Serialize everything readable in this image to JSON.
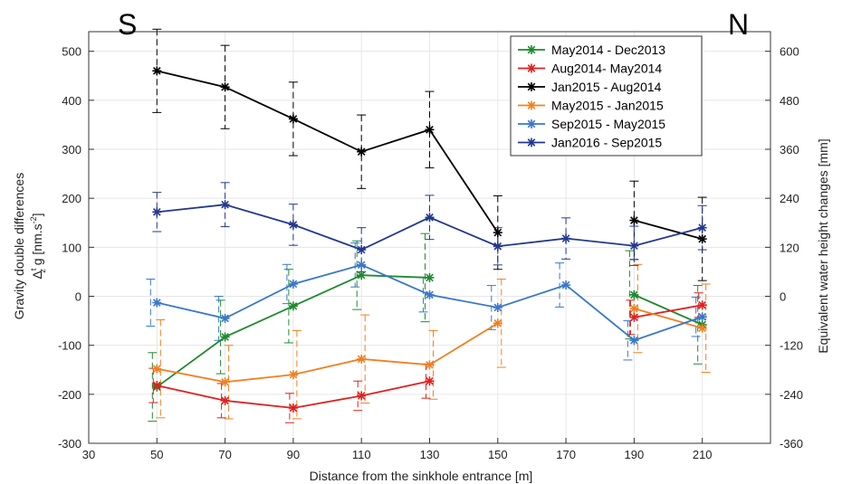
{
  "chart_data": {
    "type": "line",
    "corner_left": "S",
    "corner_right": "N",
    "xlabel": "Distance from the sinkhole entrance  [m]",
    "ylabel_line1": "Gravity double differences",
    "ylabel_line2_prefix": "Δ",
    "ylabel_line2_sub": "z",
    "ylabel_line2_sup": "t",
    "ylabel_line2_rest": " g  [nm.s",
    "ylabel_line2_unit_sup": "-2",
    "ylabel_line2_end": "]",
    "y2label": "Equivalent water height  changes [mm]",
    "xlim": [
      30,
      230
    ],
    "ylim": [
      -300,
      540
    ],
    "y2lim": [
      -360,
      648
    ],
    "xticks": [
      "30",
      "50",
      "70",
      "90",
      "110",
      "130",
      "150",
      "170",
      "190",
      "210"
    ],
    "xtick_values": [
      30,
      50,
      70,
      90,
      110,
      130,
      150,
      170,
      190,
      210
    ],
    "yticks": [
      "-300",
      "-200",
      "-100",
      "0",
      "100",
      "200",
      "300",
      "400",
      "500"
    ],
    "ytick_values": [
      -300,
      -200,
      -100,
      0,
      100,
      200,
      300,
      400,
      500
    ],
    "y2ticks": [
      "-360",
      "-240",
      "-120",
      "0",
      "120",
      "240",
      "360",
      "480",
      "600"
    ],
    "y2tick_values": [
      -360,
      -240,
      -120,
      0,
      120,
      240,
      360,
      480,
      600
    ],
    "grid": true,
    "legend_position": "top-right",
    "series": [
      {
        "name": "May2014 - Dec2013",
        "color": "#1e8a2e",
        "segments": [
          [
            [
              50,
              -185,
              70
            ],
            [
              70,
              -83,
              75
            ],
            [
              90,
              -20,
              75
            ],
            [
              110,
              43,
              70
            ],
            [
              130,
              38,
              90
            ]
          ],
          [
            [
              190,
              3,
              90
            ],
            [
              210,
              -58,
              80
            ]
          ]
        ]
      },
      {
        "name": "Aug2014- May2014",
        "color": "#e02020",
        "segments": [
          [
            [
              50,
              -182,
              35
            ],
            [
              70,
              -213,
              35
            ],
            [
              90,
              -228,
              30
            ],
            [
              110,
              -203,
              30
            ],
            [
              130,
              -173,
              35
            ]
          ],
          [
            [
              190,
              -43,
              35
            ],
            [
              210,
              -18,
              25
            ]
          ]
        ]
      },
      {
        "name": "Jan2015 - Aug2014",
        "color": "#000000",
        "segments": [
          [
            [
              50,
              460,
              85
            ],
            [
              70,
              427,
              85
            ],
            [
              90,
              362,
              75
            ],
            [
              110,
              295,
              75
            ],
            [
              130,
              340,
              78
            ],
            [
              150,
              130,
              75
            ]
          ],
          [
            [
              190,
              155,
              80
            ],
            [
              210,
              117,
              85
            ]
          ]
        ]
      },
      {
        "name": "May2015 - Jan2015",
        "color": "#f08020",
        "segments": [
          [
            [
              50,
              -148,
              100
            ],
            [
              70,
              -175,
              75
            ],
            [
              90,
              -160,
              90
            ],
            [
              110,
              -128,
              90
            ],
            [
              130,
              -140,
              70
            ],
            [
              150,
              -55,
              90
            ]
          ],
          [
            [
              190,
              -25,
              90
            ],
            [
              210,
              -65,
              90
            ]
          ]
        ]
      },
      {
        "name": "Sep2015 - May2015",
        "color": "#3a78c8",
        "segments": [
          [
            [
              50,
              -13,
              48
            ],
            [
              70,
              -45,
              45
            ],
            [
              90,
              25,
              40
            ],
            [
              110,
              64,
              45
            ],
            [
              130,
              3,
              35
            ],
            [
              150,
              -23,
              45
            ],
            [
              170,
              23,
              45
            ],
            [
              190,
              -90,
              40
            ],
            [
              210,
              -42,
              40
            ]
          ]
        ]
      },
      {
        "name": "Jan2016 - Sep2015",
        "color": "#23388f",
        "segments": [
          [
            [
              50,
              172,
              40
            ],
            [
              70,
              187,
              45
            ],
            [
              90,
              146,
              42
            ],
            [
              110,
              95,
              45
            ],
            [
              130,
              161,
              45
            ],
            [
              150,
              102,
              38
            ],
            [
              170,
              118,
              42
            ],
            [
              190,
              103,
              40
            ],
            [
              210,
              140,
              45
            ]
          ]
        ]
      }
    ]
  }
}
